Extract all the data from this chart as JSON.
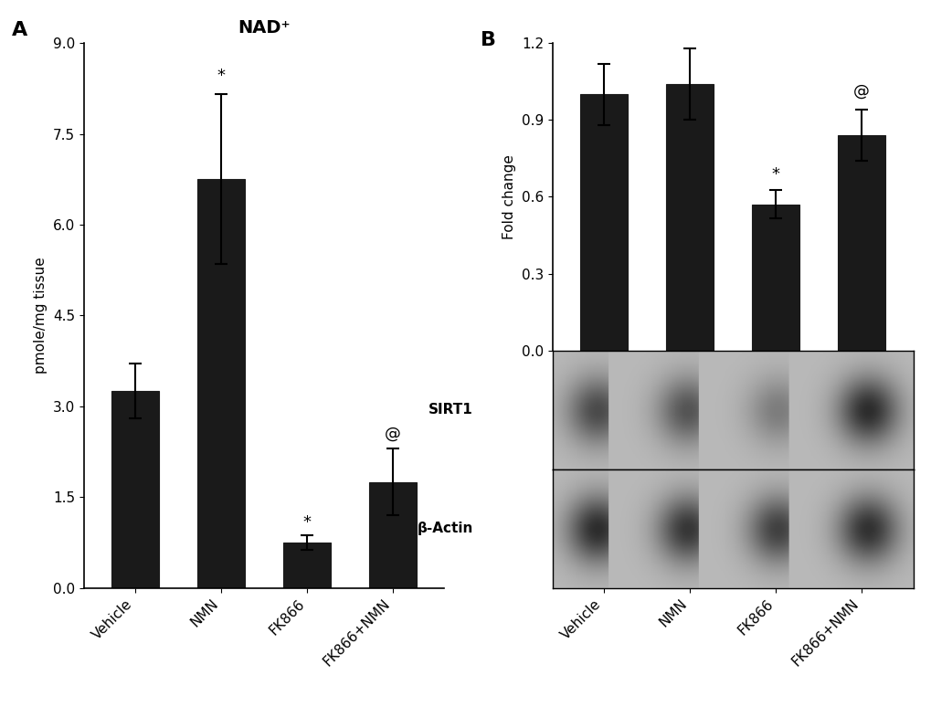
{
  "panel_A": {
    "title": "NAD⁺",
    "ylabel": "pmole/mg tissue",
    "categories": [
      "Vehicle",
      "NMN",
      "FK866",
      "FK866+NMN"
    ],
    "values": [
      3.25,
      6.75,
      0.75,
      1.75
    ],
    "errors": [
      0.45,
      1.4,
      0.12,
      0.55
    ],
    "bar_color": "#1a1a1a",
    "ylim": [
      0,
      9.0
    ],
    "yticks": [
      0.0,
      1.5,
      3.0,
      4.5,
      6.0,
      7.5,
      9.0
    ],
    "ytick_labels": [
      "0.0",
      "1.5",
      "3.0",
      "4.5",
      "6.0",
      "7.5",
      "9.0"
    ],
    "significance": [
      "",
      "*",
      "*",
      "@"
    ],
    "sig_offsets": [
      0,
      0.18,
      0.08,
      0.12
    ],
    "label": "A"
  },
  "panel_B": {
    "ylabel": "Fold change",
    "categories": [
      "Vehicle",
      "NMN",
      "FK866",
      "FK866+NMN"
    ],
    "values": [
      1.0,
      1.04,
      0.57,
      0.84
    ],
    "errors": [
      0.12,
      0.14,
      0.055,
      0.1
    ],
    "bar_color": "#1a1a1a",
    "ylim": [
      0,
      1.2
    ],
    "yticks": [
      0.0,
      0.3,
      0.6,
      0.9,
      1.2
    ],
    "ytick_labels": [
      "0.0",
      "0.3",
      "0.6",
      "0.9",
      "1.2"
    ],
    "significance": [
      "",
      "",
      "*",
      "@"
    ],
    "sig_offsets": [
      0,
      0,
      0.03,
      0.04
    ],
    "label": "B",
    "sirt1_label": "SIRT1",
    "actin_label": "β-Actin",
    "sirt1_bands": [
      110,
      100,
      60,
      140
    ],
    "actin_bands": [
      140,
      130,
      120,
      135
    ],
    "wb_bg": 185
  },
  "background_color": "#ffffff",
  "bar_width": 0.55,
  "capsize": 5,
  "font_size": 11,
  "title_font_size": 14,
  "label_font_size": 16
}
